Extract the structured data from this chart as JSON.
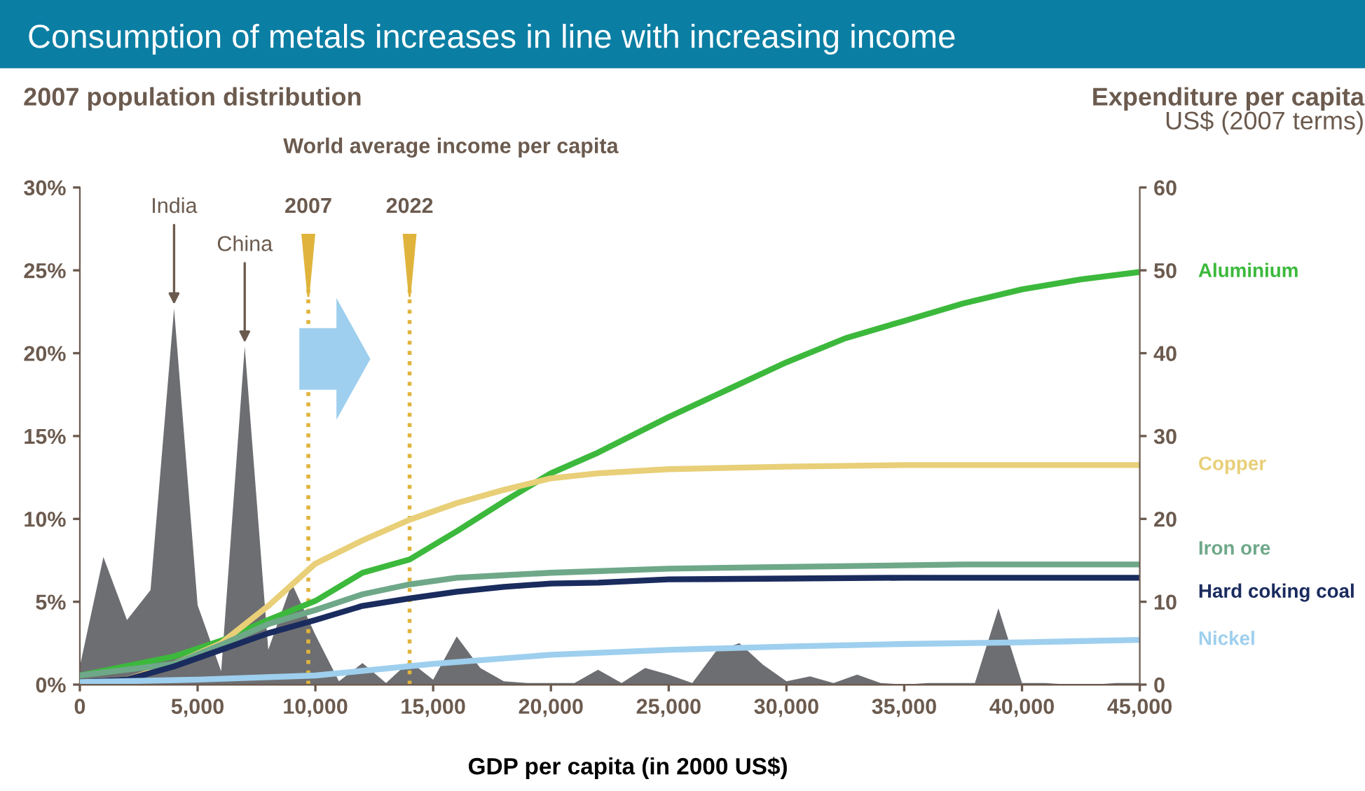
{
  "chart_data": {
    "type": "line",
    "title": "Consumption of metals increases in line with increasing income",
    "ylabel": "2007 population distribution",
    "y2label": "Expenditure per capita",
    "xlabel": "GDP per capita (in 2000 US$)",
    "annotations": [
      "US$ (2007 terms)",
      "World average income per capita",
      "2007",
      "2022",
      {
        "text": "India",
        "x": 4000,
        "y": 22.7
      },
      {
        "text": "China",
        "x": 7000,
        "y": 20.4
      }
    ],
    "xlim": [
      0,
      45000
    ],
    "xticks": [
      0,
      {
        "value": 5000,
        "label": "5,000"
      },
      {
        "value": 10000,
        "label": "10,000"
      },
      {
        "value": 15000,
        "label": "15,000"
      },
      {
        "value": 20000,
        "label": "20,000"
      },
      {
        "value": 25000,
        "label": "25,000"
      },
      {
        "value": 30000,
        "label": "30,000"
      },
      {
        "value": 35000,
        "label": "35,000"
      },
      {
        "value": 40000,
        "label": "40,000"
      },
      {
        "value": 45000,
        "label": "45,000"
      }
    ],
    "ylim": [
      0,
      30
    ],
    "yticks": [
      {
        "value": 0,
        "label": "0%"
      },
      {
        "value": 5,
        "label": "5%"
      },
      {
        "value": 10,
        "label": "10%"
      },
      {
        "value": 15,
        "label": "15%"
      },
      {
        "value": 20,
        "label": "20%"
      },
      {
        "value": 25,
        "label": "25%"
      },
      {
        "value": 30,
        "label": "30%"
      }
    ],
    "y2lim": [
      0,
      60
    ],
    "y2ticks": [
      0,
      10,
      20,
      30,
      40,
      50,
      60
    ],
    "ref_lines": [
      {
        "axis": "x",
        "value": 9700,
        "color": "#e0b43c",
        "line_style": "dotted"
      },
      {
        "axis": "x",
        "value": 14000,
        "color": "#e0b43c",
        "line_style": "dotted"
      }
    ],
    "series": [
      {
        "type": "area",
        "color": "#6d6e71",
        "x": [
          0,
          1000,
          2000,
          3000,
          4000,
          5000,
          6000,
          7000,
          8000,
          9000,
          10000,
          11000,
          12000,
          13000,
          14000,
          15000,
          16000,
          17000,
          18000,
          19000,
          20000,
          21000,
          22000,
          23000,
          24000,
          25000,
          26000,
          27000,
          28000,
          29000,
          30000,
          31000,
          32000,
          33000,
          34000,
          35000,
          36000,
          37000,
          38000,
          39000,
          40000,
          41000,
          42000,
          43000,
          44000,
          45000
        ],
        "values": [
          1.1,
          7.7,
          3.9,
          5.7,
          22.7,
          4.8,
          0.8,
          20.4,
          2.1,
          6.1,
          3.0,
          0.2,
          1.3,
          0.1,
          1.4,
          0.3,
          2.9,
          1.0,
          0.2,
          0.1,
          0.1,
          0.1,
          0.9,
          0.1,
          1.0,
          0.6,
          0.1,
          2.0,
          2.5,
          1.2,
          0.2,
          0.5,
          0.1,
          0.6,
          0.1,
          0,
          0.1,
          0.1,
          0.1,
          4.6,
          0.1,
          0.1,
          0,
          0,
          0.1,
          0.1
        ]
      },
      {
        "name": "Aluminium",
        "axis": "y2",
        "color": "#3cb93c",
        "x": [
          0,
          4000,
          6000,
          8000,
          10000,
          12000,
          14000,
          16000,
          18000,
          20000,
          22000,
          25000,
          27500,
          30000,
          32500,
          35000,
          37500,
          40000,
          42500,
          45000
        ],
        "values": [
          1.1,
          3.4,
          5.3,
          7.8,
          10.1,
          13.5,
          15.1,
          18.5,
          22.1,
          25.5,
          28.0,
          32.3,
          35.6,
          38.9,
          41.8,
          43.9,
          46.0,
          47.7,
          48.9,
          49.8
        ]
      },
      {
        "name": "Copper",
        "axis": "y2",
        "color": "#e8cf78",
        "x": [
          0,
          2000,
          4000,
          6000,
          8000,
          10000,
          12000,
          14000,
          16000,
          18000,
          20000,
          22000,
          25000,
          30000,
          35000,
          45000
        ],
        "values": [
          0.3,
          0.6,
          2.5,
          5.0,
          9.5,
          14.6,
          17.4,
          19.9,
          21.9,
          23.5,
          24.9,
          25.5,
          26.0,
          26.3,
          26.5,
          26.5
        ]
      },
      {
        "name": "Iron ore",
        "axis": "y2",
        "color": "#6ea889",
        "x": [
          0,
          4000,
          6000,
          8000,
          10000,
          12000,
          14000,
          16000,
          18000,
          20000,
          25000,
          30000,
          37500,
          45000
        ],
        "values": [
          1.1,
          2.5,
          4.8,
          7.3,
          9.0,
          10.9,
          12.1,
          12.9,
          13.2,
          13.5,
          14.0,
          14.2,
          14.5,
          14.5
        ]
      },
      {
        "name": "Hard coking coal",
        "axis": "y2",
        "color": "#1a2b5e",
        "x": [
          0,
          2000,
          4000,
          6000,
          8000,
          10000,
          12000,
          14000,
          16000,
          18000,
          20000,
          22000,
          25000,
          30000,
          35000,
          45000
        ],
        "values": [
          0.3,
          0.6,
          2.2,
          4.2,
          6.2,
          7.8,
          9.5,
          10.4,
          11.2,
          11.8,
          12.2,
          12.3,
          12.7,
          12.8,
          12.9,
          12.9
        ]
      },
      {
        "name": "Nickel",
        "axis": "y2",
        "color": "#9ecfee",
        "x": [
          0,
          5000,
          10000,
          15000,
          20000,
          25000,
          30000,
          35000,
          40000,
          45000
        ],
        "values": [
          0.3,
          0.6,
          1.1,
          2.5,
          3.6,
          4.2,
          4.6,
          4.9,
          5.1,
          5.4
        ]
      }
    ]
  }
}
